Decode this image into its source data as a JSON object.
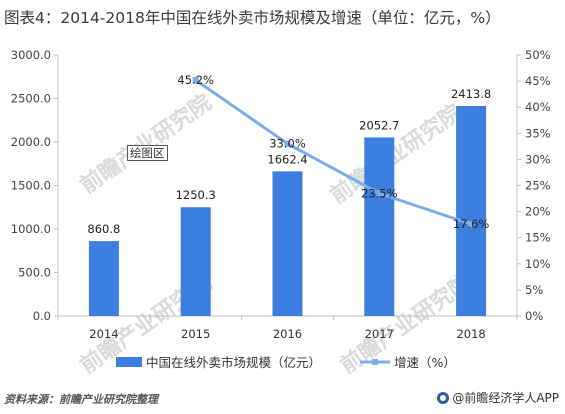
{
  "title": "图表4：2014-2018年中国在线外卖市场规模及增速（单位：亿元，%）",
  "plot_area_tag": "绘图区",
  "source": "资料来源：前瞻产业研究院整理",
  "brand": "@前瞻经济学人APP",
  "watermark": "前瞻产业研究院",
  "colors": {
    "bar": "#3c7fe0",
    "line": "#7aaee8",
    "axis": "#bfbfbf"
  },
  "chart_data": {
    "type": "bar",
    "categories": [
      "2014",
      "2015",
      "2016",
      "2017",
      "2018"
    ],
    "series": [
      {
        "name": "中国在线外卖市场规模（亿元）",
        "type": "bar",
        "axis": "left",
        "values": [
          860.8,
          1250.3,
          1662.4,
          2052.7,
          2413.8
        ],
        "labels": [
          "860.8",
          "1250.3",
          "1662.4",
          "2052.7",
          "2413.8"
        ]
      },
      {
        "name": "增速（%）",
        "type": "line",
        "axis": "right",
        "values": [
          null,
          45.2,
          33.0,
          23.5,
          17.6
        ],
        "labels": [
          "",
          "45.2%",
          "33.0%",
          "23.5%",
          "17.6%"
        ]
      }
    ],
    "y_left": {
      "min": 0,
      "max": 3000,
      "step": 500,
      "ticks": [
        "0.0",
        "500.0",
        "1000.0",
        "1500.0",
        "2000.0",
        "2500.0",
        "3000.0"
      ]
    },
    "y_right": {
      "min": 0,
      "max": 50,
      "step": 5,
      "ticks": [
        "0%",
        "5%",
        "10%",
        "15%",
        "20%",
        "25%",
        "30%",
        "35%",
        "40%",
        "45%",
        "50%"
      ]
    },
    "grid": false,
    "legend": "bottom"
  }
}
